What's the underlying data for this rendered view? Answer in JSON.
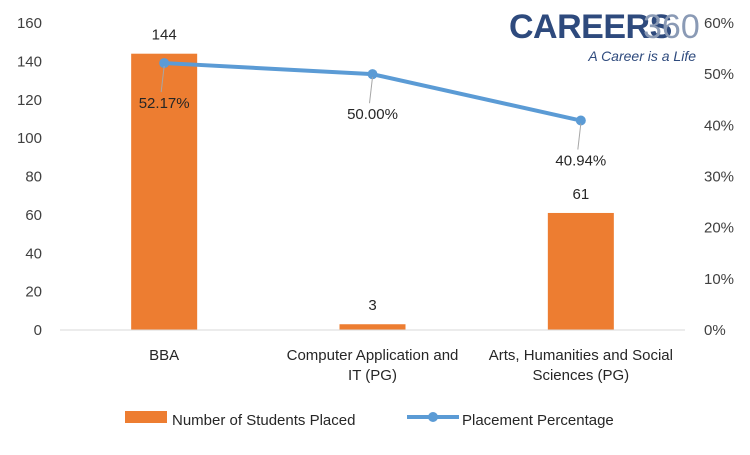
{
  "logo": {
    "brand": "CAREERS",
    "number": "360",
    "tagline": "A Career is a Life"
  },
  "colors": {
    "bars": "#ed7d31",
    "line": "#5b9bd5",
    "axis": "#d9d9d9",
    "text": "#404040"
  },
  "chart_data": {
    "type": "bar",
    "categories": [
      [
        "BBA"
      ],
      [
        "Computer Application and",
        "IT (PG)"
      ],
      [
        "Arts, Humanities and Social",
        "Sciences (PG)"
      ]
    ],
    "series": [
      {
        "name": "Number of Students Placed",
        "type": "bar",
        "axis": "left",
        "values": [
          144,
          3,
          61
        ],
        "labels": [
          "144",
          "3",
          "61"
        ]
      },
      {
        "name": "Placement Percentage",
        "type": "line",
        "axis": "right",
        "values": [
          52.17,
          50.0,
          40.94
        ],
        "labels": [
          "52.17%",
          "50.00%",
          "40.94%"
        ]
      }
    ],
    "y_left": {
      "min": 0,
      "max": 160,
      "step": 20,
      "ticks": [
        "0",
        "20",
        "40",
        "60",
        "80",
        "100",
        "120",
        "140",
        "160"
      ]
    },
    "y_right": {
      "min": 0,
      "max": 60,
      "step": 10,
      "ticks": [
        "0%",
        "10%",
        "20%",
        "30%",
        "40%",
        "50%",
        "60%"
      ]
    },
    "legend": {
      "position": "bottom"
    },
    "grid": false
  }
}
